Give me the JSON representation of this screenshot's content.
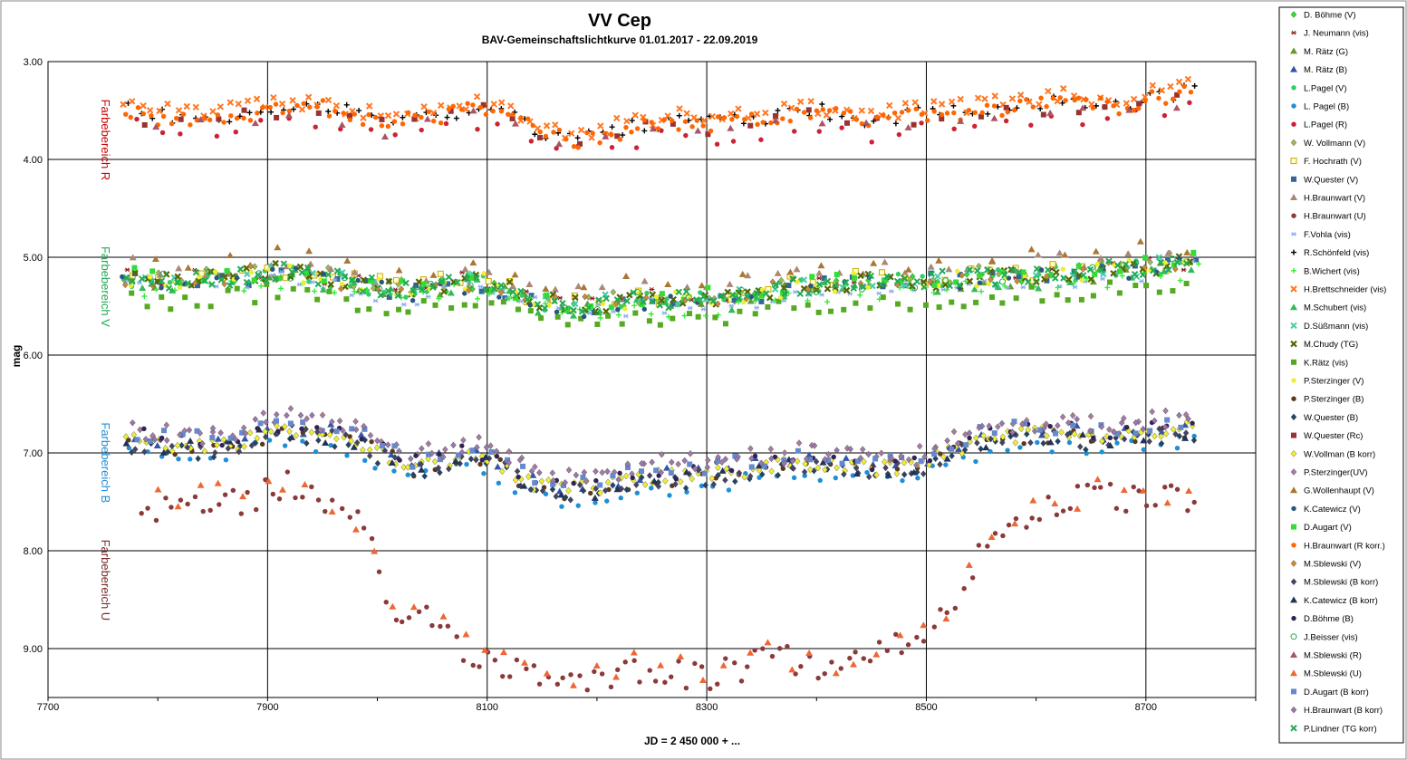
{
  "chart_data": {
    "type": "scatter",
    "title": "VV Cep",
    "subtitle": "BAV-Gemeinschaftslichtkurve  01.01.2017  - 22.09.2019",
    "xlabel": "JD = 2 450 000 + ...",
    "ylabel": "mag",
    "xlim": [
      7700,
      8800
    ],
    "ylim": [
      9.5,
      3.0
    ],
    "y_inverted": true,
    "grid": true,
    "legend_position": "right",
    "x_ticks": [
      "7700",
      "7900",
      "8100",
      "8300",
      "8500",
      "8700"
    ],
    "y_ticks": [
      "3.00",
      "4.00",
      "5.00",
      "6.00",
      "7.00",
      "8.00",
      "9.00"
    ],
    "band_labels": [
      {
        "text": "Farbebereich R",
        "mag": 3.8,
        "color": "#cc0000"
      },
      {
        "text": "Farbebereich V",
        "mag": 5.3,
        "color": "#22aa55"
      },
      {
        "text": "Farbebereich B",
        "mag": 7.1,
        "color": "#1e8fd6"
      },
      {
        "text": "Farbebereich U",
        "mag": 8.3,
        "color": "#7a2a2a"
      }
    ],
    "band_trends": {
      "R": [
        [
          7770,
          3.45
        ],
        [
          7800,
          3.55
        ],
        [
          7850,
          3.55
        ],
        [
          7900,
          3.5
        ],
        [
          7950,
          3.45
        ],
        [
          8000,
          3.6
        ],
        [
          8050,
          3.55
        ],
        [
          8100,
          3.45
        ],
        [
          8150,
          3.7
        ],
        [
          8180,
          3.8
        ],
        [
          8220,
          3.7
        ],
        [
          8260,
          3.6
        ],
        [
          8300,
          3.62
        ],
        [
          8350,
          3.58
        ],
        [
          8400,
          3.5
        ],
        [
          8450,
          3.6
        ],
        [
          8500,
          3.52
        ],
        [
          8560,
          3.48
        ],
        [
          8620,
          3.4
        ],
        [
          8680,
          3.45
        ],
        [
          8700,
          3.35
        ],
        [
          8745,
          3.3
        ]
      ],
      "V": [
        [
          7770,
          5.2
        ],
        [
          7820,
          5.25
        ],
        [
          7870,
          5.2
        ],
        [
          7910,
          5.15
        ],
        [
          7950,
          5.2
        ],
        [
          8000,
          5.3
        ],
        [
          8030,
          5.35
        ],
        [
          8070,
          5.25
        ],
        [
          8100,
          5.25
        ],
        [
          8150,
          5.45
        ],
        [
          8180,
          5.5
        ],
        [
          8230,
          5.45
        ],
        [
          8280,
          5.42
        ],
        [
          8330,
          5.4
        ],
        [
          8380,
          5.3
        ],
        [
          8430,
          5.25
        ],
        [
          8480,
          5.25
        ],
        [
          8520,
          5.22
        ],
        [
          8580,
          5.2
        ],
        [
          8640,
          5.15
        ],
        [
          8700,
          5.1
        ],
        [
          8745,
          5.05
        ]
      ],
      "B": [
        [
          7770,
          6.85
        ],
        [
          7820,
          6.95
        ],
        [
          7870,
          6.9
        ],
        [
          7910,
          6.75
        ],
        [
          7950,
          6.8
        ],
        [
          7990,
          6.9
        ],
        [
          8030,
          7.15
        ],
        [
          8070,
          7.05
        ],
        [
          8100,
          7.05
        ],
        [
          8140,
          7.3
        ],
        [
          8170,
          7.4
        ],
        [
          8200,
          7.35
        ],
        [
          8250,
          7.25
        ],
        [
          8300,
          7.22
        ],
        [
          8350,
          7.15
        ],
        [
          8400,
          7.1
        ],
        [
          8450,
          7.15
        ],
        [
          8490,
          7.15
        ],
        [
          8520,
          7.0
        ],
        [
          8560,
          6.85
        ],
        [
          8600,
          6.8
        ],
        [
          8660,
          6.85
        ],
        [
          8700,
          6.8
        ],
        [
          8745,
          6.75
        ]
      ],
      "U": [
        [
          7780,
          7.6
        ],
        [
          7830,
          7.5
        ],
        [
          7880,
          7.5
        ],
        [
          7920,
          7.3
        ],
        [
          7960,
          7.6
        ],
        [
          7990,
          7.8
        ],
        [
          8010,
          8.7
        ],
        [
          8040,
          8.6
        ],
        [
          8080,
          9.0
        ],
        [
          8120,
          9.2
        ],
        [
          8180,
          9.3
        ],
        [
          8250,
          9.2
        ],
        [
          8300,
          9.3
        ],
        [
          8360,
          9.1
        ],
        [
          8420,
          9.2
        ],
        [
          8490,
          8.9
        ],
        [
          8520,
          8.6
        ],
        [
          8550,
          8.0
        ],
        [
          8580,
          7.7
        ],
        [
          8620,
          7.5
        ],
        [
          8660,
          7.45
        ],
        [
          8700,
          7.5
        ],
        [
          8745,
          7.45
        ]
      ]
    },
    "series": [
      {
        "name": "D. Böhme (V)",
        "marker": "diamond",
        "color": "#33dd33",
        "band": "V",
        "offset": 0.0,
        "stride": 24,
        "phase": 1
      },
      {
        "name": "J. Neumann (vis)",
        "marker": "star",
        "color": "#8b1a1a",
        "band": "V",
        "offset": -0.02,
        "stride": 30,
        "phase": 2
      },
      {
        "name": "M. Rätz (G)",
        "marker": "triangle",
        "color": "#669933",
        "band": "V",
        "offset": 0.03,
        "stride": 26,
        "phase": 3
      },
      {
        "name": "M. Rätz (B)",
        "marker": "triangle",
        "color": "#3355aa",
        "band": "B",
        "offset": -0.03,
        "stride": 26,
        "phase": 4
      },
      {
        "name": "L.Pagel (V)",
        "marker": "circle",
        "color": "#33cc66",
        "band": "V",
        "offset": 0.01,
        "stride": 18,
        "phase": 5
      },
      {
        "name": "L. Pagel (B)",
        "marker": "circle",
        "color": "#1e8fd6",
        "band": "B",
        "offset": 0.12,
        "stride": 14,
        "phase": 6
      },
      {
        "name": "L.Pagel (R)",
        "marker": "circle",
        "color": "#cc2233",
        "band": "R",
        "offset": 0.15,
        "stride": 24,
        "phase": 7
      },
      {
        "name": "W. Vollmann (V)",
        "marker": "diamond",
        "color": "#99bb55",
        "band": "V",
        "offset": -0.03,
        "stride": 22,
        "phase": 8
      },
      {
        "name": "F. Hochrath (V)",
        "marker": "square-open",
        "color": "#ccaa00",
        "band": "V",
        "offset": -0.02,
        "stride": 20,
        "phase": 9
      },
      {
        "name": "W.Quester (V)",
        "marker": "square",
        "color": "#336699",
        "band": "V",
        "offset": 0.02,
        "stride": 26,
        "phase": 10
      },
      {
        "name": "H.Braunwart (V)",
        "marker": "triangle",
        "color": "#aa8877",
        "band": "V",
        "offset": -0.12,
        "stride": 20,
        "phase": 11
      },
      {
        "name": "H.Braunwart (U)",
        "marker": "circle",
        "color": "#8b3a3a",
        "band": "U",
        "offset": 0.0,
        "stride": 7,
        "phase": 12
      },
      {
        "name": "F.Vohla (vis)",
        "marker": "star",
        "color": "#88aaee",
        "band": "V",
        "offset": 0.06,
        "stride": 12,
        "phase": 13
      },
      {
        "name": "R.Schönfeld (vis)",
        "marker": "plus",
        "color": "#000000",
        "band": "R",
        "offset": 0.0,
        "stride": 10,
        "phase": 14
      },
      {
        "name": "B.Wichert (vis)",
        "marker": "plus",
        "color": "#33ee33",
        "band": "V",
        "offset": 0.1,
        "stride": 16,
        "phase": 15
      },
      {
        "name": "H.Brettschneider (vis)",
        "marker": "x",
        "color": "#ff7722",
        "band": "R",
        "offset": -0.05,
        "stride": 8,
        "phase": 16
      },
      {
        "name": "M.Schubert (vis)",
        "marker": "triangle",
        "color": "#33bb55",
        "band": "V",
        "offset": 0.05,
        "stride": 28,
        "phase": 17
      },
      {
        "name": "D.Süßmann (vis)",
        "marker": "x",
        "color": "#44ccaa",
        "band": "V",
        "offset": 0.0,
        "stride": 30,
        "phase": 18
      },
      {
        "name": "M.Chudy (TG)",
        "marker": "x-box",
        "color": "#556600",
        "band": "V",
        "offset": 0.0,
        "stride": 10,
        "phase": 19
      },
      {
        "name": "K.Rätz (vis)",
        "marker": "square",
        "color": "#55aa22",
        "band": "V",
        "offset": 0.2,
        "stride": 12,
        "phase": 20
      },
      {
        "name": "P.Sterzinger (V)",
        "marker": "circle",
        "color": "#eeee33",
        "band": "V",
        "offset": 0.0,
        "stride": 16,
        "phase": 21
      },
      {
        "name": "P.Sterzinger (B)",
        "marker": "circle",
        "color": "#5a3a1a",
        "band": "B",
        "offset": 0.02,
        "stride": 20,
        "phase": 22
      },
      {
        "name": "W.Quester (B)",
        "marker": "diamond",
        "color": "#224466",
        "band": "B",
        "offset": 0.05,
        "stride": 14,
        "phase": 23
      },
      {
        "name": "W.Quester (Rc)",
        "marker": "square",
        "color": "#993333",
        "band": "R",
        "offset": 0.05,
        "stride": 30,
        "phase": 24
      },
      {
        "name": "W.Vollman (B korr)",
        "marker": "diamond",
        "color": "#eeee33",
        "band": "B",
        "offset": 0.0,
        "stride": 6,
        "phase": 25
      },
      {
        "name": "P.Sterzinger(UV)",
        "marker": "diamond",
        "color": "#a67ba0",
        "band": "B",
        "offset": -0.15,
        "stride": 14,
        "phase": 26
      },
      {
        "name": "G.Wollenhaupt (V)",
        "marker": "triangle",
        "color": "#aa7733",
        "band": "V",
        "offset": -0.2,
        "stride": 36,
        "phase": 27
      },
      {
        "name": "K.Catewicz (V)",
        "marker": "circle",
        "color": "#2a5580",
        "band": "V",
        "offset": 0.03,
        "stride": 26,
        "phase": 28
      },
      {
        "name": "D.Augart (V)",
        "marker": "square",
        "color": "#33dd33",
        "band": "V",
        "offset": -0.02,
        "stride": 22,
        "phase": 29
      },
      {
        "name": "H.Braunwart (R korr.)",
        "marker": "circle",
        "color": "#ff6600",
        "band": "R",
        "offset": 0.02,
        "stride": 6,
        "phase": 30
      },
      {
        "name": "M.Sblewski (V)",
        "marker": "diamond",
        "color": "#cc8833",
        "band": "V",
        "offset": 0.0,
        "stride": 28,
        "phase": 31
      },
      {
        "name": "M.Sblewski (B korr)",
        "marker": "diamond",
        "color": "#444466",
        "band": "B",
        "offset": 0.03,
        "stride": 12,
        "phase": 32
      },
      {
        "name": "K.Catewicz (B korr)",
        "marker": "triangle",
        "color": "#223355",
        "band": "B",
        "offset": 0.02,
        "stride": 30,
        "phase": 33
      },
      {
        "name": "D.Böhme (B)",
        "marker": "circle",
        "color": "#332255",
        "band": "B",
        "offset": -0.05,
        "stride": 18,
        "phase": 34
      },
      {
        "name": "J.Beisser (vis)",
        "marker": "circle-open",
        "color": "#22aa55",
        "band": "V",
        "offset": 0.0,
        "stride": 40,
        "phase": 35
      },
      {
        "name": "M.Sblewski (R)",
        "marker": "triangle",
        "color": "#aa5566",
        "band": "R",
        "offset": 0.1,
        "stride": 40,
        "phase": 36
      },
      {
        "name": "M.Sblewski (U)",
        "marker": "triangle",
        "color": "#ee6633",
        "band": "U",
        "offset": -0.05,
        "stride": 20,
        "phase": 37
      },
      {
        "name": "D.Augart (B korr)",
        "marker": "square",
        "color": "#6688cc",
        "band": "B",
        "offset": -0.08,
        "stride": 14,
        "phase": 38
      },
      {
        "name": "H.Braunwart (B korr)",
        "marker": "diamond",
        "color": "#9977aa",
        "band": "B",
        "offset": -0.1,
        "stride": 10,
        "phase": 39
      },
      {
        "name": "P.Lindner (TG korr)",
        "marker": "x",
        "color": "#22aa55",
        "band": "V",
        "offset": 0.0,
        "stride": 8,
        "phase": 40
      }
    ]
  }
}
